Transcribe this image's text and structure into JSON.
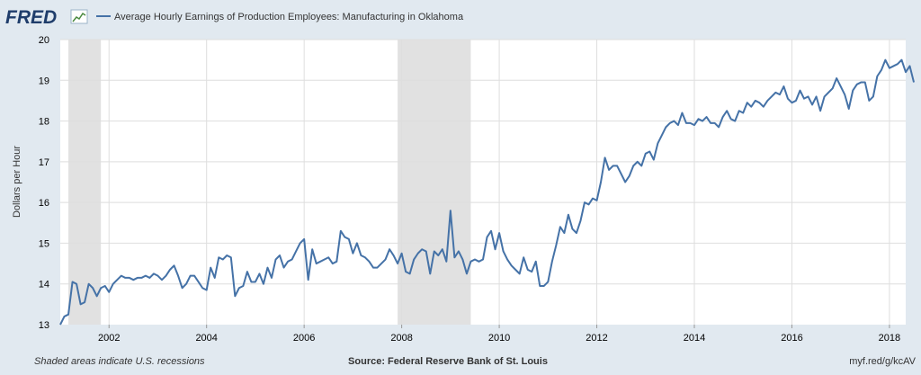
{
  "logo": {
    "text": "FRED"
  },
  "chart_data": {
    "type": "line",
    "title": "Average Hourly Earnings of Production Employees: Manufacturing in Oklahoma",
    "ylabel": "Dollars per Hour",
    "xlabel": "",
    "xlim": [
      "2001-01",
      "2018-05"
    ],
    "ylim": [
      13,
      20
    ],
    "yticks": [
      13,
      14,
      15,
      16,
      17,
      18,
      19,
      20
    ],
    "xticks": [
      "2002",
      "2004",
      "2006",
      "2008",
      "2010",
      "2012",
      "2014",
      "2016",
      "2018"
    ],
    "grid": true,
    "legend": "top-left",
    "recessions": [
      {
        "start": "2001-03",
        "end": "2001-11"
      },
      {
        "start": "2007-12",
        "end": "2009-06"
      }
    ],
    "series": [
      {
        "name": "Average Hourly Earnings of Production Employees: Manufacturing in Oklahoma",
        "color": "#4572a7",
        "points": [
          [
            "2001-01",
            13.0
          ],
          [
            "2001-02",
            13.2
          ],
          [
            "2001-03",
            13.25
          ],
          [
            "2001-04",
            14.05
          ],
          [
            "2001-05",
            14.0
          ],
          [
            "2001-06",
            13.5
          ],
          [
            "2001-07",
            13.55
          ],
          [
            "2001-08",
            14.0
          ],
          [
            "2001-09",
            13.9
          ],
          [
            "2001-10",
            13.7
          ],
          [
            "2001-11",
            13.9
          ],
          [
            "2001-12",
            13.95
          ],
          [
            "2002-01",
            13.8
          ],
          [
            "2002-02",
            14.0
          ],
          [
            "2002-03",
            14.1
          ],
          [
            "2002-04",
            14.2
          ],
          [
            "2002-05",
            14.15
          ],
          [
            "2002-06",
            14.15
          ],
          [
            "2002-07",
            14.1
          ],
          [
            "2002-08",
            14.15
          ],
          [
            "2002-09",
            14.15
          ],
          [
            "2002-10",
            14.2
          ],
          [
            "2002-11",
            14.15
          ],
          [
            "2002-12",
            14.25
          ],
          [
            "2003-01",
            14.2
          ],
          [
            "2003-02",
            14.1
          ],
          [
            "2003-03",
            14.2
          ],
          [
            "2003-04",
            14.35
          ],
          [
            "2003-05",
            14.45
          ],
          [
            "2003-06",
            14.2
          ],
          [
            "2003-07",
            13.9
          ],
          [
            "2003-08",
            14.0
          ],
          [
            "2003-09",
            14.2
          ],
          [
            "2003-10",
            14.2
          ],
          [
            "2003-11",
            14.05
          ],
          [
            "2003-12",
            13.9
          ],
          [
            "2004-01",
            13.85
          ],
          [
            "2004-02",
            14.4
          ],
          [
            "2004-03",
            14.15
          ],
          [
            "2004-04",
            14.65
          ],
          [
            "2004-05",
            14.6
          ],
          [
            "2004-06",
            14.7
          ],
          [
            "2004-07",
            14.65
          ],
          [
            "2004-08",
            13.7
          ],
          [
            "2004-09",
            13.9
          ],
          [
            "2004-10",
            13.95
          ],
          [
            "2004-11",
            14.3
          ],
          [
            "2004-12",
            14.05
          ],
          [
            "2005-01",
            14.05
          ],
          [
            "2005-02",
            14.25
          ],
          [
            "2005-03",
            14.0
          ],
          [
            "2005-04",
            14.4
          ],
          [
            "2005-05",
            14.15
          ],
          [
            "2005-06",
            14.6
          ],
          [
            "2005-07",
            14.7
          ],
          [
            "2005-08",
            14.4
          ],
          [
            "2005-09",
            14.55
          ],
          [
            "2005-10",
            14.6
          ],
          [
            "2005-11",
            14.8
          ],
          [
            "2005-12",
            15.0
          ],
          [
            "2006-01",
            15.1
          ],
          [
            "2006-02",
            14.1
          ],
          [
            "2006-03",
            14.85
          ],
          [
            "2006-04",
            14.5
          ],
          [
            "2006-05",
            14.55
          ],
          [
            "2006-06",
            14.6
          ],
          [
            "2006-07",
            14.65
          ],
          [
            "2006-08",
            14.5
          ],
          [
            "2006-09",
            14.55
          ],
          [
            "2006-10",
            15.3
          ],
          [
            "2006-11",
            15.15
          ],
          [
            "2006-12",
            15.1
          ],
          [
            "2007-01",
            14.75
          ],
          [
            "2007-02",
            15.0
          ],
          [
            "2007-03",
            14.7
          ],
          [
            "2007-04",
            14.65
          ],
          [
            "2007-05",
            14.55
          ],
          [
            "2007-06",
            14.4
          ],
          [
            "2007-07",
            14.4
          ],
          [
            "2007-08",
            14.5
          ],
          [
            "2007-09",
            14.6
          ],
          [
            "2007-10",
            14.85
          ],
          [
            "2007-11",
            14.7
          ],
          [
            "2007-12",
            14.5
          ],
          [
            "2008-01",
            14.75
          ],
          [
            "2008-02",
            14.3
          ],
          [
            "2008-03",
            14.25
          ],
          [
            "2008-04",
            14.6
          ],
          [
            "2008-05",
            14.75
          ],
          [
            "2008-06",
            14.85
          ],
          [
            "2008-07",
            14.8
          ],
          [
            "2008-08",
            14.25
          ],
          [
            "2008-09",
            14.8
          ],
          [
            "2008-10",
            14.7
          ],
          [
            "2008-11",
            14.85
          ],
          [
            "2008-12",
            14.55
          ],
          [
            "2009-01",
            15.8
          ],
          [
            "2009-02",
            14.65
          ],
          [
            "2009-03",
            14.8
          ],
          [
            "2009-04",
            14.6
          ],
          [
            "2009-05",
            14.25
          ],
          [
            "2009-06",
            14.55
          ],
          [
            "2009-07",
            14.6
          ],
          [
            "2009-08",
            14.55
          ],
          [
            "2009-09",
            14.6
          ],
          [
            "2009-10",
            15.15
          ],
          [
            "2009-11",
            15.3
          ],
          [
            "2009-12",
            14.85
          ],
          [
            "2010-01",
            15.25
          ],
          [
            "2010-02",
            14.8
          ],
          [
            "2010-03",
            14.6
          ],
          [
            "2010-04",
            14.45
          ],
          [
            "2010-05",
            14.35
          ],
          [
            "2010-06",
            14.25
          ],
          [
            "2010-07",
            14.65
          ],
          [
            "2010-08",
            14.35
          ],
          [
            "2010-09",
            14.3
          ],
          [
            "2010-10",
            14.55
          ],
          [
            "2010-11",
            13.95
          ],
          [
            "2010-12",
            13.95
          ],
          [
            "2011-01",
            14.05
          ],
          [
            "2011-02",
            14.55
          ],
          [
            "2011-03",
            14.95
          ],
          [
            "2011-04",
            15.4
          ],
          [
            "2011-05",
            15.25
          ],
          [
            "2011-06",
            15.7
          ],
          [
            "2011-07",
            15.35
          ],
          [
            "2011-08",
            15.25
          ],
          [
            "2011-09",
            15.55
          ],
          [
            "2011-10",
            16.0
          ],
          [
            "2011-11",
            15.95
          ],
          [
            "2011-12",
            16.1
          ],
          [
            "2012-01",
            16.05
          ],
          [
            "2012-02",
            16.5
          ],
          [
            "2012-03",
            17.1
          ],
          [
            "2012-04",
            16.8
          ],
          [
            "2012-05",
            16.9
          ],
          [
            "2012-06",
            16.9
          ],
          [
            "2012-07",
            16.7
          ],
          [
            "2012-08",
            16.5
          ],
          [
            "2012-09",
            16.65
          ],
          [
            "2012-10",
            16.9
          ],
          [
            "2012-11",
            17.0
          ],
          [
            "2012-12",
            16.9
          ],
          [
            "2013-01",
            17.2
          ],
          [
            "2013-02",
            17.25
          ],
          [
            "2013-03",
            17.05
          ],
          [
            "2013-04",
            17.45
          ],
          [
            "2013-05",
            17.65
          ],
          [
            "2013-06",
            17.85
          ],
          [
            "2013-07",
            17.95
          ],
          [
            "2013-08",
            18.0
          ],
          [
            "2013-09",
            17.9
          ],
          [
            "2013-10",
            18.2
          ],
          [
            "2013-11",
            17.95
          ],
          [
            "2013-12",
            17.95
          ],
          [
            "2014-01",
            17.9
          ],
          [
            "2014-02",
            18.05
          ],
          [
            "2014-03",
            18.0
          ],
          [
            "2014-04",
            18.1
          ],
          [
            "2014-05",
            17.95
          ],
          [
            "2014-06",
            17.95
          ],
          [
            "2014-07",
            17.85
          ],
          [
            "2014-08",
            18.1
          ],
          [
            "2014-09",
            18.25
          ],
          [
            "2014-10",
            18.05
          ],
          [
            "2014-11",
            18.0
          ],
          [
            "2014-12",
            18.25
          ],
          [
            "2015-01",
            18.2
          ],
          [
            "2015-02",
            18.45
          ],
          [
            "2015-03",
            18.35
          ],
          [
            "2015-04",
            18.5
          ],
          [
            "2015-05",
            18.45
          ],
          [
            "2015-06",
            18.35
          ],
          [
            "2015-07",
            18.5
          ],
          [
            "2015-08",
            18.6
          ],
          [
            "2015-09",
            18.7
          ],
          [
            "2015-10",
            18.65
          ],
          [
            "2015-11",
            18.85
          ],
          [
            "2015-12",
            18.55
          ],
          [
            "2016-01",
            18.45
          ],
          [
            "2016-02",
            18.5
          ],
          [
            "2016-03",
            18.75
          ],
          [
            "2016-04",
            18.55
          ],
          [
            "2016-05",
            18.6
          ],
          [
            "2016-06",
            18.4
          ],
          [
            "2016-07",
            18.6
          ],
          [
            "2016-08",
            18.25
          ],
          [
            "2016-09",
            18.6
          ],
          [
            "2016-10",
            18.7
          ],
          [
            "2016-11",
            18.8
          ],
          [
            "2016-12",
            19.05
          ],
          [
            "2017-01",
            18.85
          ],
          [
            "2017-02",
            18.65
          ],
          [
            "2017-03",
            18.3
          ],
          [
            "2017-04",
            18.75
          ],
          [
            "2017-05",
            18.9
          ],
          [
            "2017-06",
            18.95
          ],
          [
            "2017-07",
            18.95
          ],
          [
            "2017-08",
            18.5
          ],
          [
            "2017-09",
            18.6
          ],
          [
            "2017-10",
            19.1
          ],
          [
            "2017-11",
            19.25
          ],
          [
            "2017-12",
            19.5
          ],
          [
            "2018-01",
            19.3
          ],
          [
            "2018-02",
            19.35
          ],
          [
            "2018-03",
            19.4
          ],
          [
            "2018-04",
            19.5
          ],
          [
            "2018-05",
            19.2
          ],
          [
            "2018-06",
            19.35
          ],
          [
            "2018-07",
            18.95
          ]
        ]
      }
    ]
  },
  "footer": {
    "left": "Shaded areas indicate U.S. recessions",
    "center": "Source: Federal Reserve Bank of St. Louis",
    "right": "myf.red/g/kcAV"
  }
}
